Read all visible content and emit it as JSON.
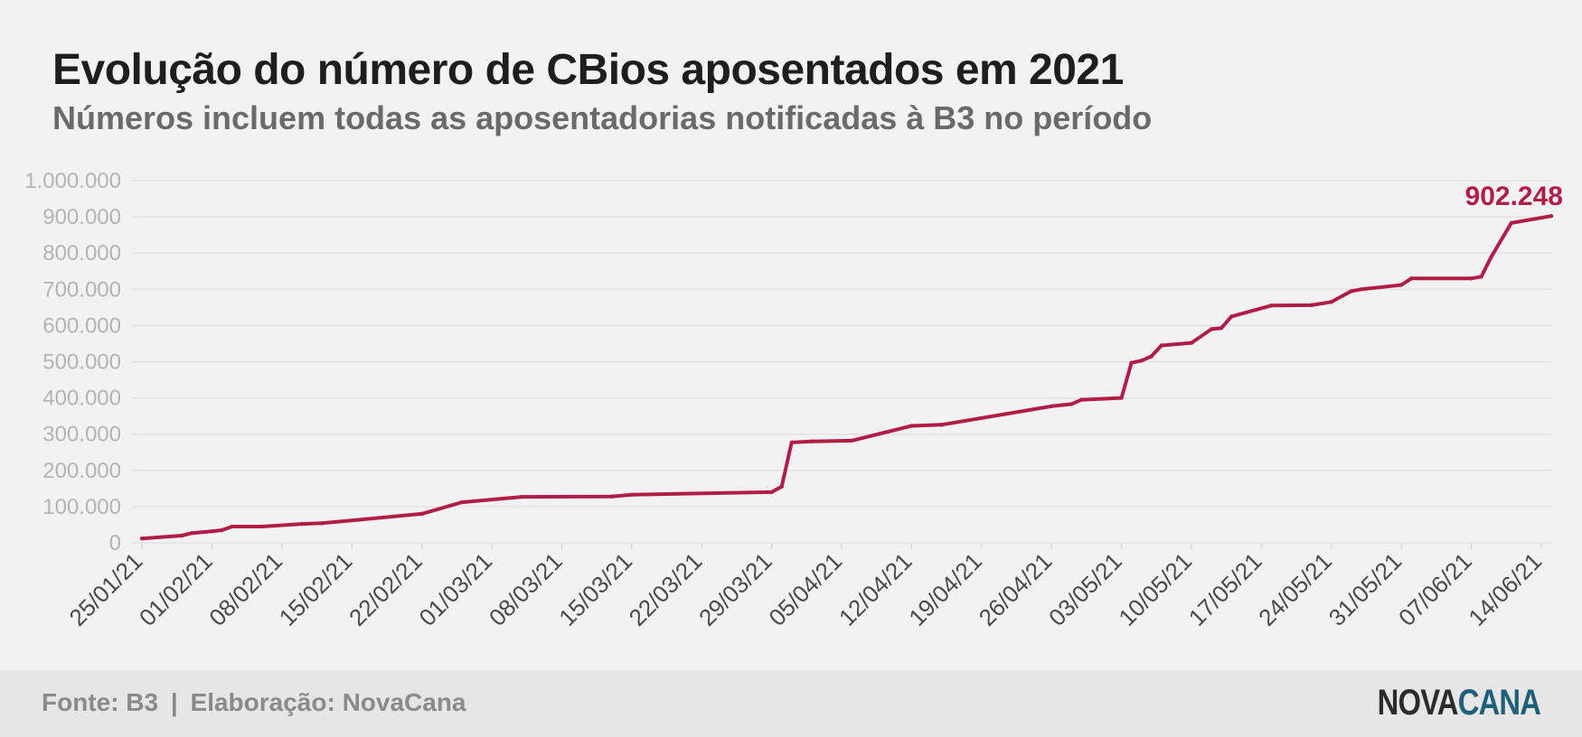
{
  "header": {
    "title": "Evolução do número de CBios aposentados em 2021",
    "subtitle": "Números incluem todas as aposentadorias notificadas à B3 no período"
  },
  "footer": {
    "source_label": "Fonte: B3",
    "separator": "|",
    "credit_label": "Elaboração: NovaCana",
    "logo_part1": "NOVA",
    "logo_part2": "CANA"
  },
  "colors": {
    "line": "#b01e48",
    "grid": "#dcdcdc",
    "background": "#f2f2f2",
    "footer": "#e6e6e6"
  },
  "chart_data": {
    "type": "line",
    "title": "Evolução do número de CBios aposentados em 2021",
    "subtitle": "Números incluem todas as aposentadorias notificadas à B3 no período",
    "xlabel": "",
    "ylabel": "",
    "x_type": "date",
    "xlim": [
      "2021-01-24",
      "2021-06-15"
    ],
    "ylim": [
      0,
      1000000
    ],
    "grid": true,
    "legend": "none",
    "end_label": "902.248",
    "x_ticks": [
      {
        "date": "2021-01-25",
        "label": "25/01/21"
      },
      {
        "date": "2021-02-01",
        "label": "01/02/21"
      },
      {
        "date": "2021-02-08",
        "label": "08/02/21"
      },
      {
        "date": "2021-02-15",
        "label": "15/02/21"
      },
      {
        "date": "2021-02-22",
        "label": "22/02/21"
      },
      {
        "date": "2021-03-01",
        "label": "01/03/21"
      },
      {
        "date": "2021-03-08",
        "label": "08/03/21"
      },
      {
        "date": "2021-03-15",
        "label": "15/03/21"
      },
      {
        "date": "2021-03-22",
        "label": "22/03/21"
      },
      {
        "date": "2021-03-29",
        "label": "29/03/21"
      },
      {
        "date": "2021-04-05",
        "label": "05/04/21"
      },
      {
        "date": "2021-04-12",
        "label": "12/04/21"
      },
      {
        "date": "2021-04-19",
        "label": "19/04/21"
      },
      {
        "date": "2021-04-26",
        "label": "26/04/21"
      },
      {
        "date": "2021-05-03",
        "label": "03/05/21"
      },
      {
        "date": "2021-05-10",
        "label": "10/05/21"
      },
      {
        "date": "2021-05-17",
        "label": "17/05/21"
      },
      {
        "date": "2021-05-24",
        "label": "24/05/21"
      },
      {
        "date": "2021-05-31",
        "label": "31/05/21"
      },
      {
        "date": "2021-06-07",
        "label": "07/06/21"
      },
      {
        "date": "2021-06-14",
        "label": "14/06/21"
      }
    ],
    "y_ticks": [
      {
        "value": 0,
        "label": "0"
      },
      {
        "value": 100000,
        "label": "100.000"
      },
      {
        "value": 200000,
        "label": "200.000"
      },
      {
        "value": 300000,
        "label": "300.000"
      },
      {
        "value": 400000,
        "label": "400.000"
      },
      {
        "value": 500000,
        "label": "500.000"
      },
      {
        "value": 600000,
        "label": "600.000"
      },
      {
        "value": 700000,
        "label": "700.000"
      },
      {
        "value": 800000,
        "label": "800.000"
      },
      {
        "value": 900000,
        "label": "900.000"
      },
      {
        "value": 1000000,
        "label": "1.000.000"
      }
    ],
    "series": [
      {
        "color": "#b01e48",
        "points": [
          [
            "2021-01-25",
            12000
          ],
          [
            "2021-01-29",
            20000
          ],
          [
            "2021-01-30",
            27000
          ],
          [
            "2021-02-01",
            32000
          ],
          [
            "2021-02-02",
            35000
          ],
          [
            "2021-02-03",
            45000
          ],
          [
            "2021-02-06",
            45000
          ],
          [
            "2021-02-10",
            52000
          ],
          [
            "2021-02-12",
            54000
          ],
          [
            "2021-02-22",
            80000
          ],
          [
            "2021-02-26",
            112000
          ],
          [
            "2021-03-04",
            127000
          ],
          [
            "2021-03-13",
            128000
          ],
          [
            "2021-03-15",
            133000
          ],
          [
            "2021-03-29",
            140000
          ],
          [
            "2021-03-30",
            155000
          ],
          [
            "2021-03-31",
            277000
          ],
          [
            "2021-04-02",
            280000
          ],
          [
            "2021-04-06",
            282000
          ],
          [
            "2021-04-12",
            323000
          ],
          [
            "2021-04-15",
            326000
          ],
          [
            "2021-04-26",
            377000
          ],
          [
            "2021-04-28",
            383000
          ],
          [
            "2021-04-29",
            395000
          ],
          [
            "2021-05-03",
            400000
          ],
          [
            "2021-05-04",
            497000
          ],
          [
            "2021-05-05",
            503000
          ],
          [
            "2021-05-06",
            515000
          ],
          [
            "2021-05-07",
            545000
          ],
          [
            "2021-05-10",
            552000
          ],
          [
            "2021-05-12",
            590000
          ],
          [
            "2021-05-13",
            593000
          ],
          [
            "2021-05-14",
            625000
          ],
          [
            "2021-05-18",
            655000
          ],
          [
            "2021-05-22",
            656000
          ],
          [
            "2021-05-24",
            665000
          ],
          [
            "2021-05-26",
            695000
          ],
          [
            "2021-05-27",
            700000
          ],
          [
            "2021-05-31",
            712000
          ],
          [
            "2021-06-01",
            730000
          ],
          [
            "2021-06-07",
            730000
          ],
          [
            "2021-06-08",
            735000
          ],
          [
            "2021-06-09",
            790000
          ],
          [
            "2021-06-11",
            883000
          ],
          [
            "2021-06-15",
            902248
          ]
        ]
      }
    ]
  }
}
